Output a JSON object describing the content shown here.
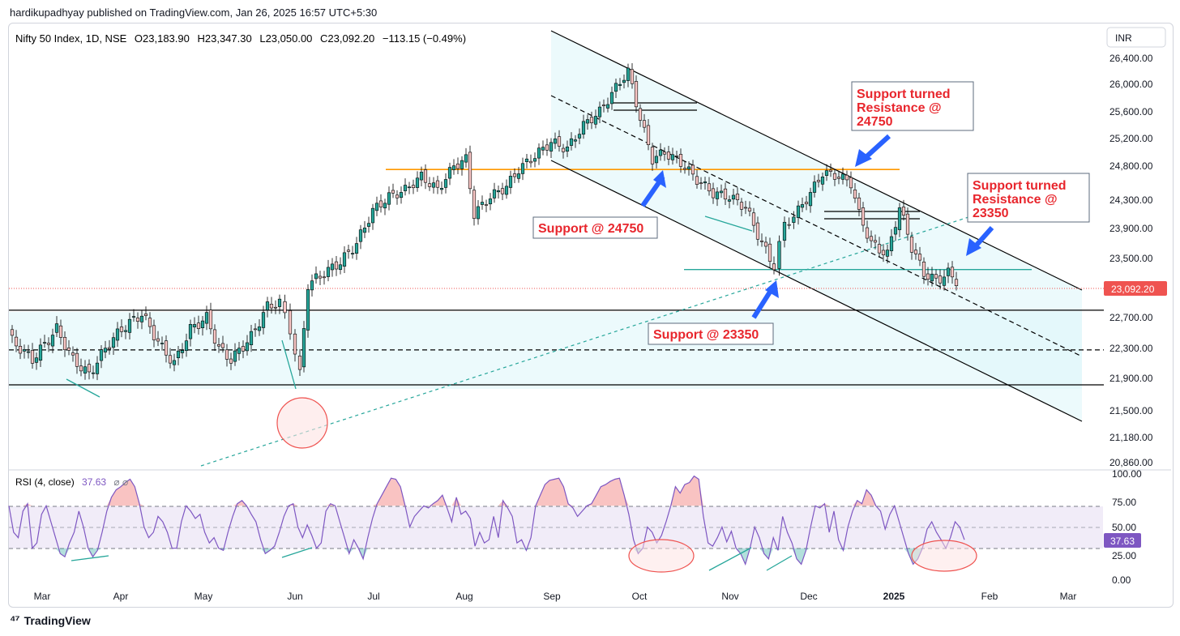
{
  "header": {
    "published": "hardikupadhyay published on TradingView.com, Jan 26, 2025 16:57 UTC+5:30",
    "symbol": "Nifty 50 Index, 1D, NSE",
    "open": "O23,183.90",
    "high": "H23,347.30",
    "low": "L23,050.00",
    "close": "C23,092.20",
    "change": "−113.15 (−0.49%)",
    "currency": "INR"
  },
  "footer": {
    "brand": "TradingView"
  },
  "colors": {
    "up": "#26a69a",
    "down": "#ef5350",
    "annotation": "#e8262d",
    "arrow": "#2962ff",
    "rsi": "#7e57c2",
    "support_line": "#ff9800"
  },
  "chart_data": [
    {
      "type": "candlestick",
      "price_axis_ticks": [
        "26,400.00",
        "26,000.00",
        "25,600.00",
        "25,200.00",
        "24,800.00",
        "24,300.00",
        "23,900.00",
        "23,500.00",
        "22,700.00",
        "22,300.00",
        "21,900.00",
        "21,500.00",
        "21,180.00",
        "20,860.00"
      ],
      "last_price_label": "23,092.20",
      "x_ticks": [
        "Mar",
        "Apr",
        "May",
        "Jun",
        "Jul",
        "Aug",
        "Sep",
        "Oct",
        "Nov",
        "Dec",
        "2025",
        "Feb",
        "Mar"
      ],
      "ylim": [
        20860,
        26650
      ],
      "horizontal_levels": [
        {
          "value": 24750,
          "color": "#ff9800",
          "style": "solid"
        },
        {
          "value": 23350,
          "color": "#26a69a",
          "style": "solid"
        },
        {
          "value": 22800,
          "color": "#000000",
          "style": "solid"
        },
        {
          "value": 22280,
          "color": "#000000",
          "style": "dashed"
        },
        {
          "value": 21820,
          "color": "#000000",
          "style": "solid"
        }
      ],
      "annotations": [
        {
          "text": "Support @ 24750"
        },
        {
          "text": "Support @ 23350"
        },
        {
          "lines": [
            "Support turned",
            "Resistance @",
            "24750"
          ]
        },
        {
          "lines": [
            "Support turned",
            "Resistance @",
            "23350"
          ]
        }
      ]
    },
    {
      "type": "line",
      "title": "RSI (4, close)",
      "last_value": "37.63",
      "axis_ticks": [
        "100.00",
        "75.00",
        "50.00",
        "25.00",
        "0.00"
      ],
      "ylim": [
        0,
        100
      ],
      "bands": {
        "upper": 70,
        "middle": 50,
        "lower": 30
      },
      "values": [
        70,
        45,
        40,
        65,
        72,
        30,
        35,
        62,
        70,
        55,
        40,
        25,
        22,
        35,
        45,
        65,
        50,
        30,
        22,
        28,
        45,
        65,
        78,
        85,
        88,
        92,
        95,
        88,
        72,
        50,
        40,
        45,
        60,
        55,
        45,
        30,
        30,
        55,
        70,
        65,
        58,
        62,
        45,
        35,
        40,
        30,
        28,
        45,
        60,
        72,
        75,
        70,
        62,
        55,
        38,
        25,
        28,
        32,
        45,
        60,
        70,
        72,
        50,
        40,
        52,
        42,
        30,
        35,
        65,
        72,
        70,
        55,
        40,
        25,
        38,
        30,
        20,
        40,
        58,
        72,
        80,
        88,
        96,
        95,
        88,
        70,
        50,
        60,
        65,
        70,
        68,
        72,
        75,
        80,
        68,
        55,
        78,
        62,
        65,
        58,
        32,
        45,
        35,
        38,
        60,
        40,
        75,
        68,
        60,
        35,
        38,
        28,
        40,
        70,
        80,
        90,
        94,
        95,
        96,
        88,
        72,
        68,
        60,
        65,
        70,
        72,
        80,
        88,
        90,
        93,
        95,
        96,
        80,
        62,
        38,
        25,
        30,
        50,
        45,
        35,
        42,
        55,
        70,
        88,
        82,
        90,
        92,
        98,
        95,
        60,
        35,
        32,
        40,
        50,
        36,
        46,
        30,
        25,
        15,
        30,
        50,
        40,
        25,
        20,
        40,
        28,
        60,
        45,
        35,
        20,
        15,
        28,
        50,
        70,
        68,
        72,
        45,
        65,
        38,
        28,
        50,
        65,
        75,
        72,
        85,
        80,
        70,
        65,
        48,
        62,
        70,
        55,
        40,
        25,
        15,
        20,
        30,
        48,
        55,
        45,
        38,
        30,
        40,
        55,
        50,
        38
      ]
    }
  ]
}
